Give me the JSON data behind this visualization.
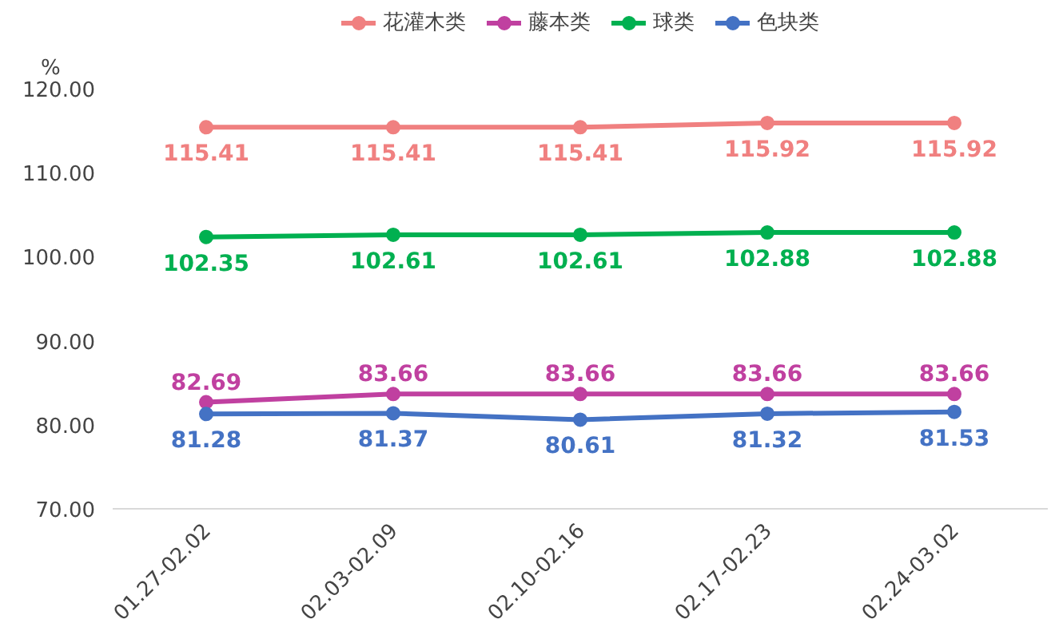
{
  "chart_data": {
    "type": "line",
    "ylabel": "%",
    "categories": [
      "01.27-02.02",
      "02.03-02.09",
      "02.10-02.16",
      "02.17-02.23",
      "02.24-03.02"
    ],
    "series": [
      {
        "name": "花灌木类",
        "color": "#f08080",
        "values": [
          115.41,
          115.41,
          115.41,
          115.92,
          115.92
        ]
      },
      {
        "name": "藤本类",
        "color": "#c040a0",
        "values": [
          82.69,
          83.66,
          83.66,
          83.66,
          83.66
        ]
      },
      {
        "name": "球类",
        "color": "#00b050",
        "values": [
          102.35,
          102.61,
          102.61,
          102.88,
          102.88
        ]
      },
      {
        "name": "色块类",
        "color": "#4472c4",
        "values": [
          81.28,
          81.37,
          80.61,
          81.32,
          81.53
        ]
      }
    ],
    "ylim": [
      70,
      120
    ],
    "yticks": [
      {
        "value": 70,
        "label": "70.00"
      },
      {
        "value": 80,
        "label": "80.00"
      },
      {
        "value": 90,
        "label": "90.00"
      },
      {
        "value": 100,
        "label": "100.00"
      },
      {
        "value": 110,
        "label": "110.00"
      },
      {
        "value": 120,
        "label": "120.00"
      }
    ],
    "data_labels": true,
    "legend": "top",
    "marker": "circle",
    "line_style": "solid",
    "grid": false
  }
}
